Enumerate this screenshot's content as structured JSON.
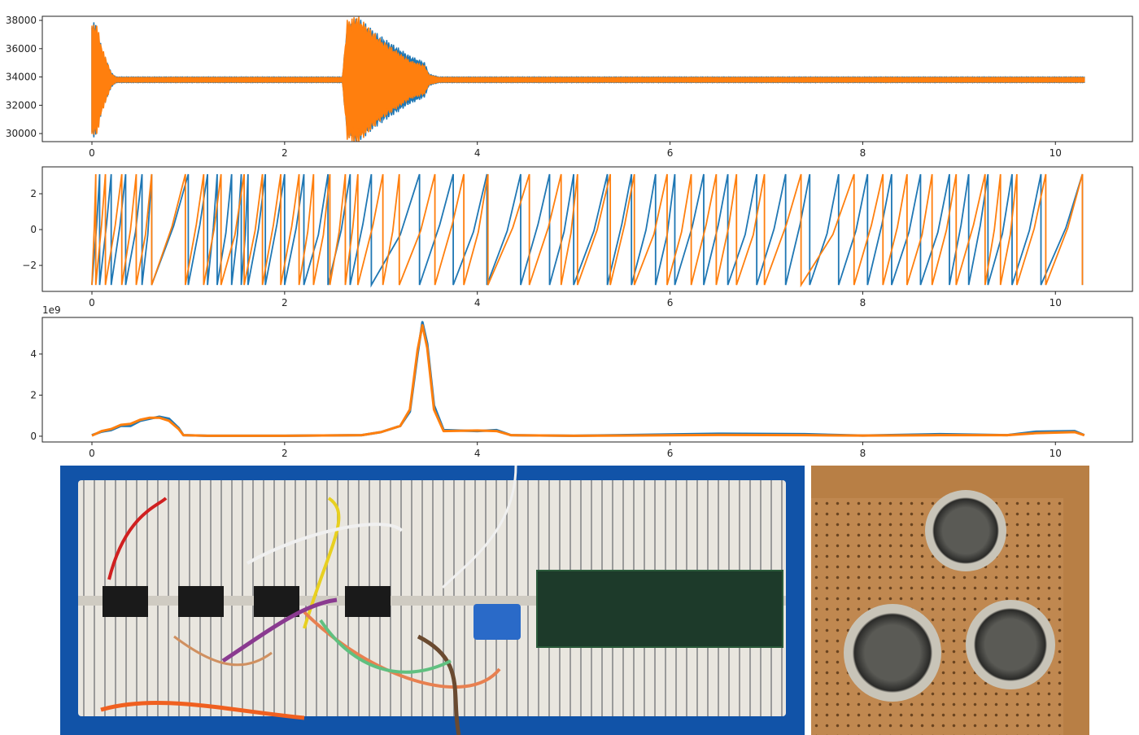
{
  "chart_data": [
    {
      "type": "line",
      "xlim": [
        -0.515,
        10.8
      ],
      "ylim": [
        29430,
        38290
      ],
      "xticks": [
        "0",
        "2",
        "4",
        "6",
        "8",
        "10"
      ],
      "yticks": [
        "30000",
        "32000",
        "34000",
        "36000",
        "38000"
      ],
      "baseline": 33800,
      "series": [
        {
          "color": "#1f77b4",
          "envelope": [
            [
              0,
              3700
            ],
            [
              0.05,
              3400
            ],
            [
              0.1,
              2000
            ],
            [
              0.2,
              450
            ],
            [
              0.25,
              180
            ],
            [
              2.6,
              180
            ],
            [
              2.65,
              3500
            ],
            [
              2.75,
              3900
            ],
            [
              3.0,
              2700
            ],
            [
              3.3,
              1500
            ],
            [
              3.45,
              1100
            ],
            [
              3.5,
              350
            ],
            [
              3.6,
              180
            ],
            [
              10.3,
              180
            ]
          ]
        },
        {
          "color": "#ff7f0e",
          "envelope": [
            [
              0,
              3400
            ],
            [
              0.05,
              3500
            ],
            [
              0.1,
              2100
            ],
            [
              0.2,
              400
            ],
            [
              0.25,
              150
            ],
            [
              2.6,
              150
            ],
            [
              2.65,
              3700
            ],
            [
              2.75,
              4000
            ],
            [
              3.0,
              2500
            ],
            [
              3.3,
              1200
            ],
            [
              3.45,
              900
            ],
            [
              3.5,
              300
            ],
            [
              3.6,
              150
            ],
            [
              10.3,
              150
            ]
          ]
        }
      ]
    },
    {
      "type": "line",
      "xlim": [
        -0.515,
        10.8
      ],
      "ylim": [
        -3.45,
        3.5
      ],
      "xticks": [
        "0",
        "2",
        "4",
        "6",
        "8",
        "10"
      ],
      "yticks": [
        "−2",
        "0",
        "2"
      ],
      "ytick_values": [
        -2,
        0,
        2
      ],
      "series": [
        {
          "color": "#1f77b4",
          "wraps": [
            0.08,
            0.2,
            0.35,
            0.52,
            0.62,
            1.0,
            1.2,
            1.3,
            1.45,
            1.55,
            1.62,
            1.8,
            2.0,
            2.2,
            2.45,
            2.68,
            2.9,
            3.4,
            3.75,
            4.1,
            4.45,
            4.75,
            5.0,
            5.35,
            5.6,
            5.85,
            6.05,
            6.35,
            6.6,
            6.9,
            7.2,
            7.45,
            7.75,
            8.05,
            8.3,
            8.6,
            8.9,
            9.1,
            9.3,
            9.55,
            9.85,
            10.28
          ]
        },
        {
          "color": "#ff7f0e",
          "wraps": [
            0.04,
            0.14,
            0.31,
            0.46,
            0.62,
            0.97,
            1.16,
            1.34,
            1.58,
            1.77,
            1.96,
            2.15,
            2.3,
            2.47,
            2.63,
            2.76,
            3.02,
            3.19,
            3.56,
            3.86,
            4.11,
            4.54,
            4.87,
            5.04,
            5.38,
            5.63,
            5.97,
            6.22,
            6.48,
            6.69,
            6.98,
            7.36,
            7.91,
            8.21,
            8.46,
            8.72,
            8.97,
            9.27,
            9.43,
            9.6,
            9.9,
            10.28
          ]
        }
      ]
    },
    {
      "type": "line",
      "xlim": [
        -0.515,
        10.8
      ],
      "ylim": [
        -0.28,
        5.78
      ],
      "offset_label": "1e9",
      "xticks": [
        "0",
        "2",
        "4",
        "6",
        "8",
        "10"
      ],
      "yticks": [
        "0",
        "2",
        "4"
      ],
      "series": [
        {
          "color": "#1f77b4",
          "points": [
            [
              0,
              0.05
            ],
            [
              0.1,
              0.22
            ],
            [
              0.2,
              0.3
            ],
            [
              0.3,
              0.5
            ],
            [
              0.4,
              0.5
            ],
            [
              0.5,
              0.75
            ],
            [
              0.6,
              0.85
            ],
            [
              0.7,
              0.95
            ],
            [
              0.8,
              0.85
            ],
            [
              0.9,
              0.4
            ],
            [
              0.95,
              0.05
            ],
            [
              1.2,
              0.02
            ],
            [
              2,
              0.02
            ],
            [
              2.8,
              0.05
            ],
            [
              3.0,
              0.2
            ],
            [
              3.2,
              0.5
            ],
            [
              3.3,
              1.2
            ],
            [
              3.38,
              4.0
            ],
            [
              3.43,
              5.55
            ],
            [
              3.48,
              4.5
            ],
            [
              3.55,
              1.5
            ],
            [
              3.65,
              0.3
            ],
            [
              4.0,
              0.25
            ],
            [
              4.2,
              0.3
            ],
            [
              4.35,
              0.05
            ],
            [
              5,
              0.02
            ],
            [
              6.5,
              0.12
            ],
            [
              7.4,
              0.1
            ],
            [
              8,
              0.03
            ],
            [
              8.8,
              0.1
            ],
            [
              9.5,
              0.05
            ],
            [
              9.8,
              0.22
            ],
            [
              10.2,
              0.25
            ],
            [
              10.3,
              0.05
            ]
          ]
        },
        {
          "color": "#ff7f0e",
          "points": [
            [
              0,
              0.03
            ],
            [
              0.1,
              0.25
            ],
            [
              0.2,
              0.35
            ],
            [
              0.3,
              0.55
            ],
            [
              0.4,
              0.6
            ],
            [
              0.5,
              0.8
            ],
            [
              0.6,
              0.9
            ],
            [
              0.7,
              0.9
            ],
            [
              0.8,
              0.75
            ],
            [
              0.9,
              0.35
            ],
            [
              0.95,
              0.05
            ],
            [
              1.2,
              0.02
            ],
            [
              2,
              0.02
            ],
            [
              2.8,
              0.05
            ],
            [
              3.0,
              0.2
            ],
            [
              3.2,
              0.5
            ],
            [
              3.3,
              1.3
            ],
            [
              3.38,
              4.2
            ],
            [
              3.43,
              5.4
            ],
            [
              3.48,
              4.3
            ],
            [
              3.55,
              1.3
            ],
            [
              3.65,
              0.25
            ],
            [
              4.0,
              0.28
            ],
            [
              4.2,
              0.25
            ],
            [
              4.35,
              0.05
            ],
            [
              5,
              0.02
            ],
            [
              6.5,
              0.06
            ],
            [
              7.4,
              0.05
            ],
            [
              8,
              0.03
            ],
            [
              8.8,
              0.05
            ],
            [
              9.5,
              0.05
            ],
            [
              9.8,
              0.15
            ],
            [
              10.2,
              0.2
            ],
            [
              10.3,
              0.05
            ]
          ]
        }
      ]
    }
  ],
  "photos": {
    "left": "breadboard circuit photo",
    "right": "ultrasonic sensor array photo"
  }
}
